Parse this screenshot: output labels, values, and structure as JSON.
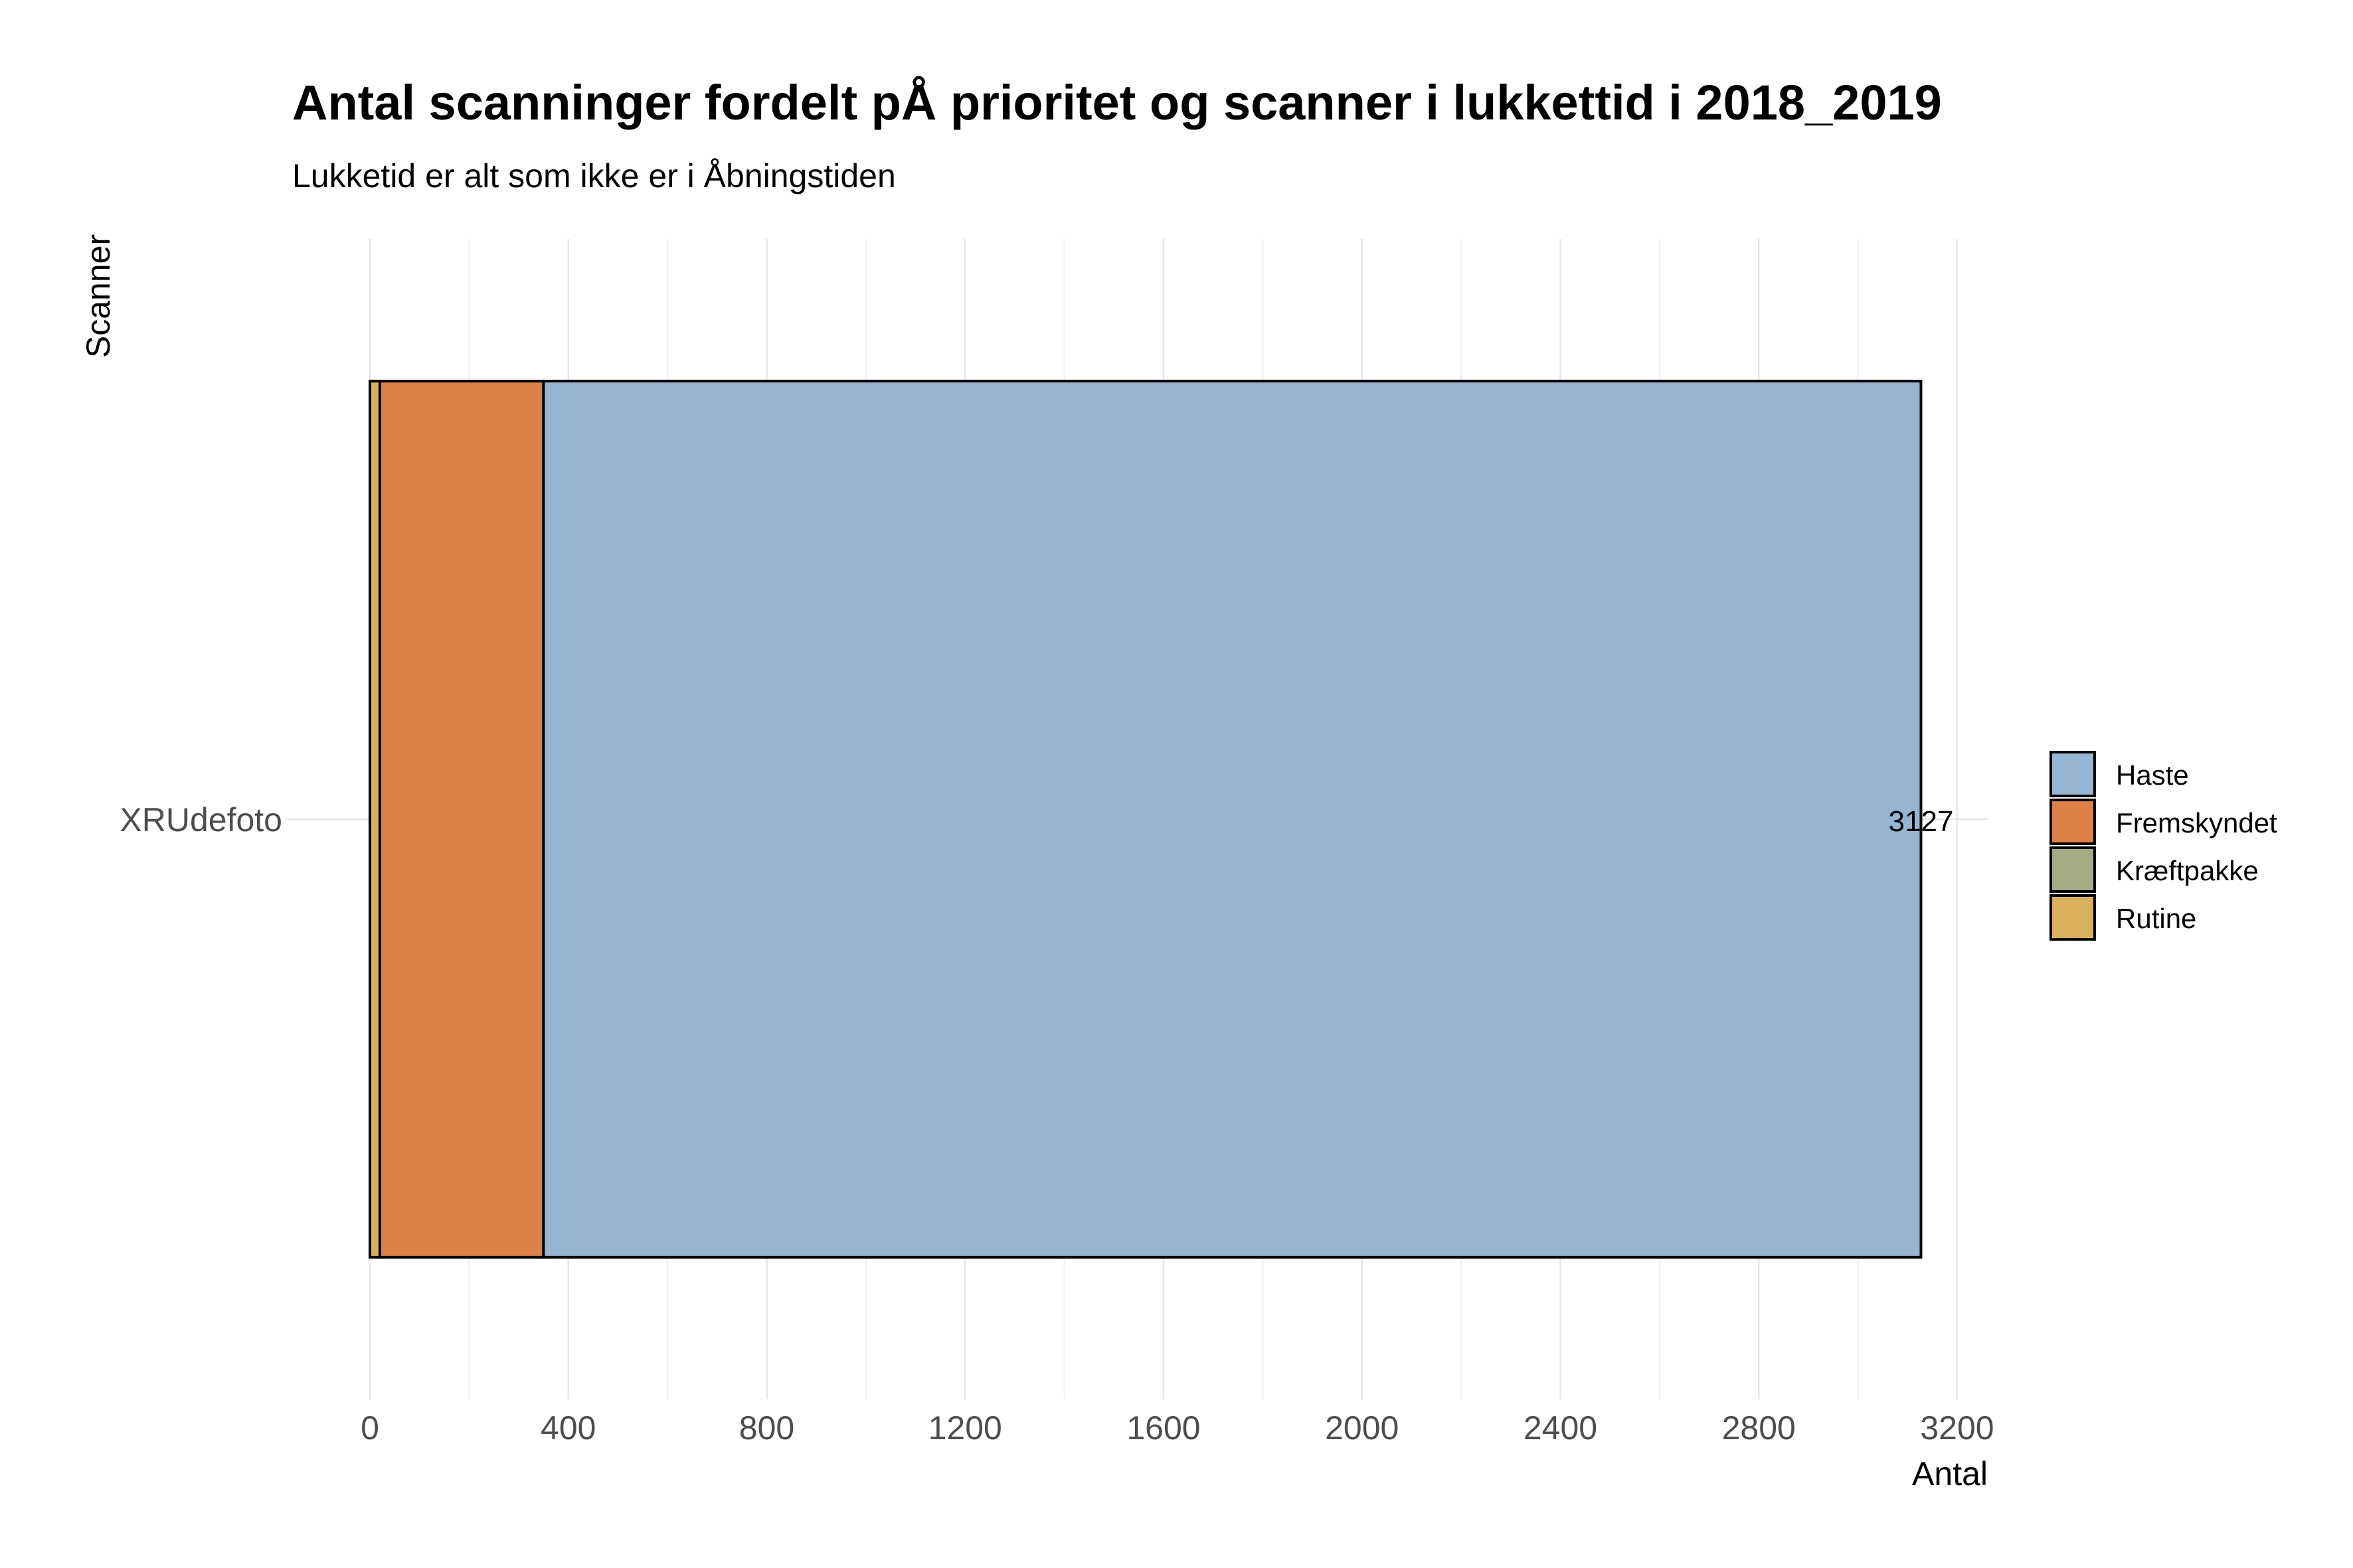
{
  "chart_data": {
    "type": "bar",
    "orientation": "horizontal",
    "stacked": true,
    "title": "Antal scanninger fordelt pÅ prioritet og scanner i lukkettid i 2018_2019",
    "subtitle": "Lukketid er alt som ikke er i Åbningstiden",
    "xlabel": "Antal",
    "ylabel": "Scanner",
    "categories": [
      "XRUdefoto"
    ],
    "xlim": [
      0,
      3200
    ],
    "x_ticks": [
      "0",
      "400",
      "800",
      "1200",
      "1600",
      "2000",
      "2400",
      "2800",
      "3200"
    ],
    "grid": true,
    "legend_position": "right",
    "series": [
      {
        "name": "Rutine",
        "values": [
          20
        ],
        "color": "#D9B15C"
      },
      {
        "name": "Kræftpakke",
        "values": [
          0
        ],
        "color": "#A5AC84"
      },
      {
        "name": "Fremskyndet",
        "values": [
          330
        ],
        "color": "#DD8149"
      },
      {
        "name": "Haste",
        "values": [
          2777
        ],
        "color": "#95B5D2"
      }
    ],
    "legend_order": [
      "Haste",
      "Fremskyndet",
      "Kræftpakke",
      "Rutine"
    ],
    "total_labels": [
      "3127"
    ]
  }
}
